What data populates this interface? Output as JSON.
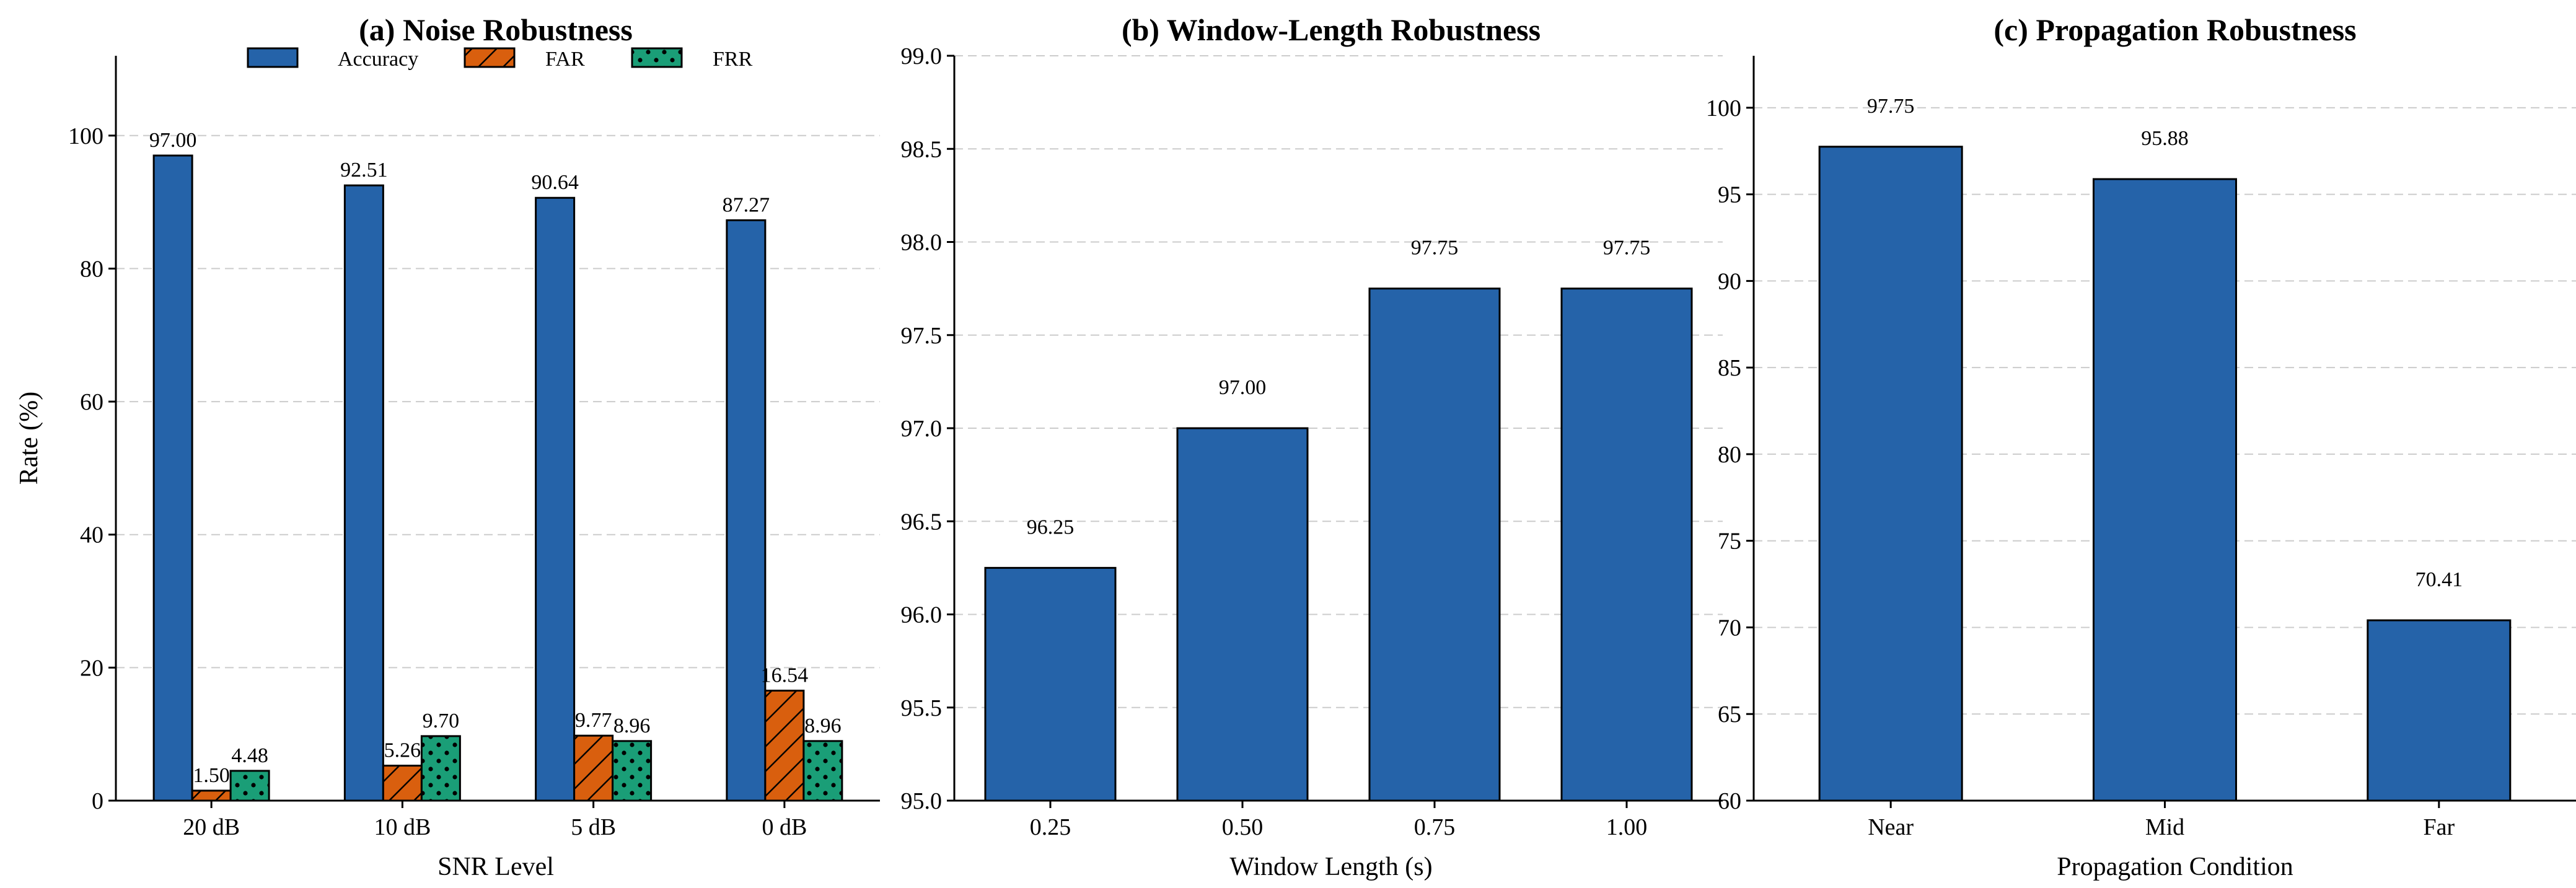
{
  "colors": {
    "accuracy": "#2563a9",
    "far": "#d95f0e",
    "frr": "#1a9e77"
  },
  "chart_data": [
    {
      "id": "a",
      "type": "bar",
      "title": "(a) Noise Robustness",
      "xlabel": "SNR Level",
      "ylabel": "Rate (%)",
      "ylim": [
        0,
        112
      ],
      "yticks": [
        0,
        20,
        40,
        60,
        80,
        100
      ],
      "grid": true,
      "legend": "top-center",
      "categories": [
        "20 dB",
        "10 dB",
        "5 dB",
        "0 dB"
      ],
      "series": [
        {
          "name": "Accuracy",
          "values": [
            97.0,
            92.51,
            90.64,
            87.27
          ],
          "labels": [
            "97.00",
            "92.51",
            "90.64",
            "87.27"
          ],
          "pattern": "solid"
        },
        {
          "name": "FAR",
          "values": [
            1.5,
            5.26,
            9.77,
            16.54
          ],
          "labels": [
            "1.50",
            "5.26",
            "9.77",
            "16.54"
          ],
          "pattern": "hatch"
        },
        {
          "name": "FRR",
          "values": [
            4.48,
            9.7,
            8.96,
            8.96
          ],
          "labels": [
            "4.48",
            "9.70",
            "8.96",
            "8.96"
          ],
          "pattern": "dots"
        }
      ]
    },
    {
      "id": "b",
      "type": "bar",
      "title": "(b) Window-Length Robustness",
      "xlabel": "Window Length (s)",
      "ylabel": "",
      "ylim": [
        95.0,
        99.0
      ],
      "yticks": [
        "95.0",
        "95.5",
        "96.0",
        "96.5",
        "97.0",
        "97.5",
        "98.0",
        "98.5",
        "99.0"
      ],
      "grid": true,
      "categories": [
        "0.25",
        "0.50",
        "0.75",
        "1.00"
      ],
      "values": [
        96.25,
        97.0,
        97.75,
        97.75
      ],
      "labels": [
        "96.25",
        "97.00",
        "97.75",
        "97.75"
      ]
    },
    {
      "id": "c",
      "type": "bar",
      "title": "(c) Propagation Robustness",
      "xlabel": "Propagation Condition",
      "ylabel": "",
      "ylim": [
        60,
        103
      ],
      "yticks": [
        "60",
        "65",
        "70",
        "75",
        "80",
        "85",
        "90",
        "95",
        "100"
      ],
      "grid": true,
      "categories": [
        "Near",
        "Mid",
        "Far"
      ],
      "values": [
        97.75,
        95.88,
        70.41
      ],
      "labels": [
        "97.75",
        "95.88",
        "70.41"
      ]
    }
  ]
}
